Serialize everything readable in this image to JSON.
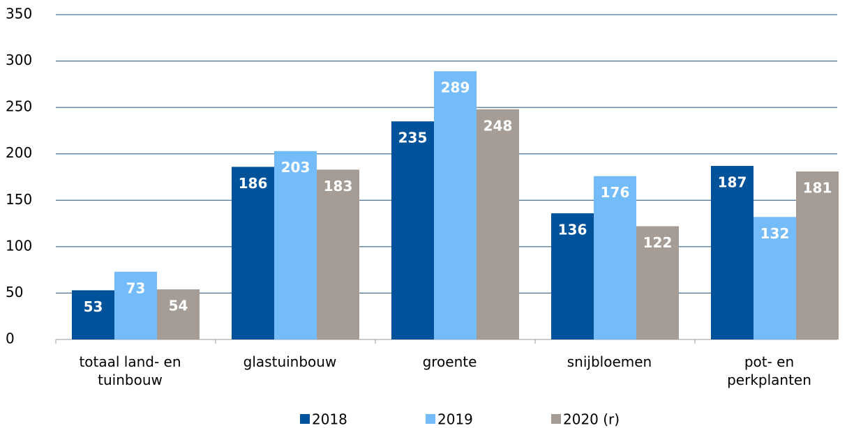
{
  "chart_data": {
    "type": "bar",
    "categories": [
      "totaal land- en\ntuinbouw",
      "glastuinbouw",
      "groente",
      "snijbloemen",
      "pot- en\nperkplanten"
    ],
    "series": [
      {
        "name": "2018",
        "color": "#00529b",
        "values": [
          53,
          186,
          235,
          136,
          187
        ]
      },
      {
        "name": "2019",
        "color": "#74bcf9",
        "values": [
          73,
          203,
          289,
          176,
          132
        ]
      },
      {
        "name": "2020 (r)",
        "color": "#a59d95",
        "values": [
          54,
          183,
          248,
          122,
          181
        ]
      }
    ],
    "ylim": [
      0,
      350
    ],
    "yticks": [
      0,
      50,
      100,
      150,
      200,
      250,
      300,
      350
    ],
    "grid": true,
    "legend": "bottom"
  }
}
